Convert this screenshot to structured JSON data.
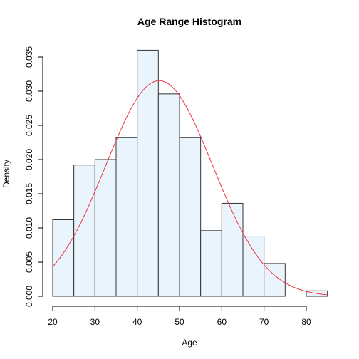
{
  "chart_data": {
    "type": "bar",
    "title": "Age Range Histogram",
    "xlabel": "Age",
    "ylabel": "Density",
    "xlim": [
      20,
      85
    ],
    "ylim": [
      0,
      0.035
    ],
    "x_ticks": [
      "20",
      "30",
      "40",
      "50",
      "60",
      "70",
      "80"
    ],
    "y_ticks": [
      "0.000",
      "0.005",
      "0.010",
      "0.015",
      "0.020",
      "0.025",
      "0.030",
      "0.035"
    ],
    "bins": [
      {
        "start": 20,
        "end": 25,
        "density": 0.0112
      },
      {
        "start": 25,
        "end": 30,
        "density": 0.0192
      },
      {
        "start": 30,
        "end": 35,
        "density": 0.02
      },
      {
        "start": 35,
        "end": 40,
        "density": 0.0232
      },
      {
        "start": 40,
        "end": 45,
        "density": 0.036
      },
      {
        "start": 45,
        "end": 50,
        "density": 0.0296
      },
      {
        "start": 50,
        "end": 55,
        "density": 0.0232
      },
      {
        "start": 55,
        "end": 60,
        "density": 0.0096
      },
      {
        "start": 60,
        "end": 65,
        "density": 0.0136
      },
      {
        "start": 65,
        "end": 70,
        "density": 0.0088
      },
      {
        "start": 70,
        "end": 75,
        "density": 0.0048
      },
      {
        "start": 75,
        "end": 80,
        "density": 0.0
      },
      {
        "start": 80,
        "end": 85,
        "density": 0.0008
      }
    ],
    "density_curve": {
      "type": "normal",
      "mean": 45.2,
      "sd": 12.65,
      "color": "#ee3344"
    },
    "bar_fill": "#eaf4fc",
    "bar_stroke": "#333333",
    "grid": false,
    "legend": "none"
  }
}
